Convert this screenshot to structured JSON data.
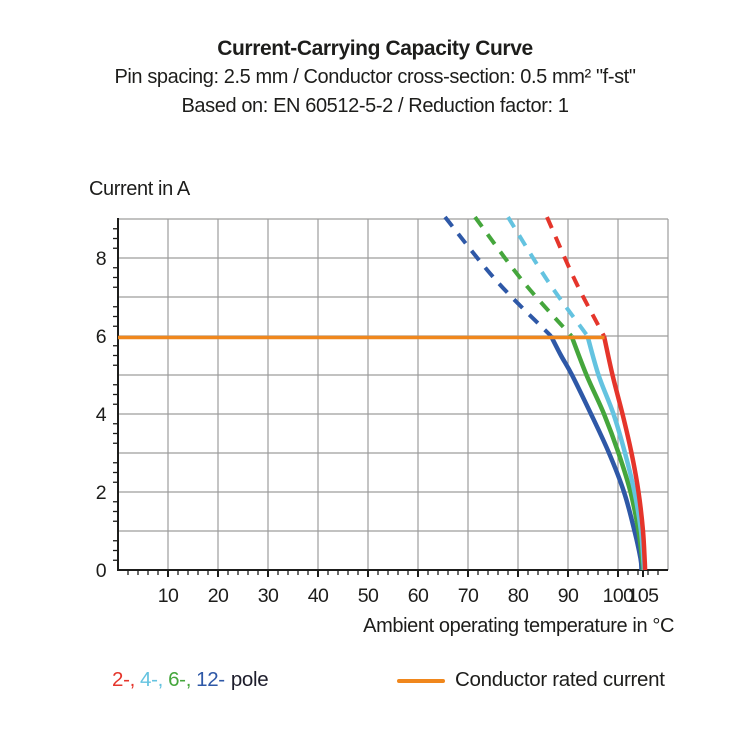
{
  "header": {
    "title": "Current-Carrying Capacity Curve",
    "subtitle_spec": "Pin spacing: 2.5 mm / Conductor cross-section: 0.5 mm² \"f-st\"",
    "subtitle_basis": "Based on: EN 60512-5-2 / Reduction factor: 1"
  },
  "chart_data": {
    "type": "line",
    "title": "Current-Carrying Capacity Curve",
    "xlabel": "Ambient operating temperature in °C",
    "ylabel": "Current in A",
    "xlim": [
      0,
      110
    ],
    "ylim": [
      0,
      9
    ],
    "x_tick_labels": [
      10,
      20,
      30,
      40,
      50,
      60,
      70,
      80,
      90,
      100,
      105
    ],
    "y_tick_labels": [
      0,
      2,
      4,
      6,
      8
    ],
    "x_grid_step": 10,
    "y_grid_step": 1,
    "x_minor_tick_step": 2,
    "y_minor_tick_step": 0.25,
    "grid": true,
    "grid_color": "#9d9d9c",
    "axis_color": "#1d1d1b",
    "legend_position": "bottom",
    "series": [
      {
        "name": "12-pole",
        "color": "#2e58a7",
        "dashed": [
          [
            65.4,
            9.05
          ],
          [
            75.8,
            7.4
          ],
          [
            86.6,
            6.0
          ]
        ],
        "solid": [
          [
            86.6,
            6.0
          ],
          [
            88.6,
            5.5
          ],
          [
            90.8,
            5.0
          ],
          [
            94.6,
            4.0
          ],
          [
            98.2,
            3.0
          ],
          [
            101.2,
            2.0
          ],
          [
            103.3,
            1.0
          ],
          [
            104.5,
            0.3
          ],
          [
            104.7,
            0.0
          ]
        ]
      },
      {
        "name": "6-pole",
        "color": "#45a63c",
        "dashed": [
          [
            71.4,
            9.05
          ],
          [
            81.0,
            7.4
          ],
          [
            90.7,
            6.0
          ]
        ],
        "solid": [
          [
            90.7,
            6.0
          ],
          [
            93.7,
            5.0
          ],
          [
            97.2,
            4.0
          ],
          [
            100.1,
            3.0
          ],
          [
            102.5,
            2.0
          ],
          [
            104.1,
            1.0
          ],
          [
            104.9,
            0.2
          ],
          [
            105.0,
            0.0
          ]
        ]
      },
      {
        "name": "4-pole",
        "color": "#64c3e0",
        "dashed": [
          [
            78.0,
            9.05
          ],
          [
            86.0,
            7.4
          ],
          [
            93.9,
            6.0
          ]
        ],
        "solid": [
          [
            93.9,
            6.0
          ],
          [
            96.1,
            5.0
          ],
          [
            99.1,
            4.0
          ],
          [
            101.4,
            3.0
          ],
          [
            103.3,
            2.0
          ],
          [
            104.6,
            1.0
          ],
          [
            105.1,
            0.2
          ],
          [
            105.2,
            0.0
          ]
        ]
      },
      {
        "name": "2-pole",
        "color": "#e5352b",
        "dashed": [
          [
            85.8,
            9.05
          ],
          [
            91.5,
            7.4
          ],
          [
            97.2,
            6.0
          ]
        ],
        "solid": [
          [
            97.2,
            6.0
          ],
          [
            98.9,
            5.0
          ],
          [
            100.9,
            4.0
          ],
          [
            102.7,
            3.0
          ],
          [
            104.1,
            2.0
          ],
          [
            105.0,
            1.0
          ],
          [
            105.35,
            0.2
          ],
          [
            105.4,
            0.0
          ]
        ]
      }
    ],
    "rated_current_line": {
      "value": 5.96,
      "x_start": 0,
      "x_end": 97.3,
      "color": "#f0871c",
      "label": "Conductor rated current"
    }
  },
  "legend": {
    "pole_items": [
      {
        "text": "2-,",
        "color": "#e5352b"
      },
      {
        "text": "4-,",
        "color": "#64c3e0"
      },
      {
        "text": "6-,",
        "color": "#45a63c"
      },
      {
        "text": "12-",
        "color": "#2e58a7"
      },
      {
        "text": "pole",
        "color": "#1d1d2b"
      }
    ],
    "rated_label": "Conductor rated current"
  }
}
